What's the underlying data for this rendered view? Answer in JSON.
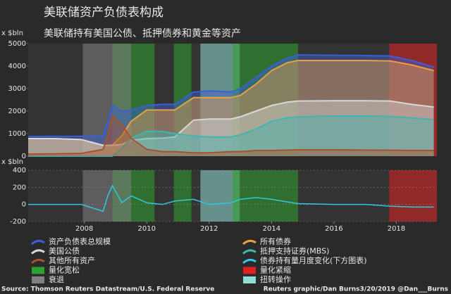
{
  "chart_data": [
    {
      "type": "area",
      "title": "美联储资产负债表构成",
      "subtitle": "美联储持有美国公债、抵押债券和黄金等资产",
      "ylabel": "x $bln",
      "xlim": [
        2006.2,
        2019.3
      ],
      "ylim": [
        0,
        5000
      ],
      "yticks": [
        0,
        1000,
        2000,
        3000,
        4000,
        5000
      ],
      "x": [
        2006.2,
        2007,
        2007.9,
        2008.6,
        2008.75,
        2008.9,
        2009.2,
        2009.5,
        2010,
        2010.5,
        2010.9,
        2011.5,
        2012,
        2012.7,
        2013,
        2013.5,
        2014,
        2014.5,
        2014.85,
        2016,
        2017,
        2017.8,
        2018.5,
        2019.2
      ],
      "series": [
        {
          "name": "资产负债表总规模",
          "color": "#3a5fd8",
          "values": [
            870,
            880,
            880,
            900,
            1500,
            2250,
            2000,
            2050,
            2250,
            2300,
            2300,
            2850,
            2900,
            2850,
            3000,
            3500,
            4000,
            4350,
            4500,
            4480,
            4470,
            4450,
            4250,
            3950
          ]
        },
        {
          "name": "所有债券",
          "color": "#e8a040",
          "values": [
            780,
            780,
            740,
            480,
            480,
            500,
            900,
            1550,
            2050,
            2050,
            2050,
            2600,
            2600,
            2600,
            2700,
            3200,
            3800,
            4150,
            4250,
            4250,
            4250,
            4230,
            4050,
            3800
          ]
        },
        {
          "name": "美国公债",
          "color": "#d8d8d8",
          "values": [
            780,
            780,
            740,
            480,
            480,
            480,
            520,
            700,
            780,
            800,
            850,
            1600,
            1650,
            1650,
            1750,
            2000,
            2250,
            2400,
            2450,
            2460,
            2460,
            2450,
            2300,
            2180
          ]
        },
        {
          "name": "抵押支持证券(MBS)",
          "color": "#40b4b0",
          "values": [
            0,
            0,
            0,
            0,
            0,
            0,
            350,
            800,
            1100,
            1100,
            1000,
            900,
            850,
            850,
            950,
            1200,
            1550,
            1700,
            1750,
            1780,
            1780,
            1760,
            1700,
            1620
          ]
        },
        {
          "name": "其他所有资产",
          "color": "#a8522a",
          "values": [
            90,
            100,
            120,
            300,
            900,
            1800,
            1400,
            800,
            300,
            200,
            200,
            150,
            150,
            200,
            200,
            250,
            250,
            270,
            280,
            280,
            270,
            260,
            250,
            250
          ]
        }
      ],
      "shaded_regions": [
        {
          "name": "量化宽松",
          "color": "#2ea02e",
          "range": [
            2008.9,
            2010.25
          ]
        },
        {
          "name": "量化紧缩",
          "color": "#e02020",
          "range": [
            2017.77,
            2019.3
          ]
        },
        {
          "name": "衰退",
          "color": "#808080",
          "range": [
            2007.95,
            2009.5
          ]
        },
        {
          "name": "扭转操作",
          "color": "#8fdcd4",
          "range": [
            2011.72,
            2012.98
          ]
        },
        {
          "name": "量化宽松",
          "color": "#2ea02e",
          "range": [
            2010.87,
            2011.43
          ]
        },
        {
          "name": "量化宽松",
          "color": "#2ea02e",
          "range": [
            2012.75,
            2014.85
          ]
        }
      ]
    },
    {
      "type": "line",
      "ylabel": "x $bln",
      "xlim": [
        2006.2,
        2019.3
      ],
      "ylim": [
        -200,
        400
      ],
      "yticks": [
        -200,
        0,
        200,
        400
      ],
      "xticks": [
        2008,
        2010,
        2012,
        2014,
        2016,
        2018
      ],
      "grid": true,
      "x": [
        2006.2,
        2007,
        2007.9,
        2008.6,
        2008.75,
        2008.9,
        2009.2,
        2009.5,
        2010,
        2010.5,
        2010.9,
        2011.5,
        2012,
        2012.7,
        2013,
        2013.5,
        2014,
        2014.5,
        2014.85,
        2016,
        2017,
        2017.8,
        2018.5,
        2019.2
      ],
      "series": [
        {
          "name": "债券持有量月度变化(下方图表)",
          "color": "#30c8e0",
          "values": [
            0,
            0,
            0,
            -80,
            100,
            220,
            20,
            100,
            20,
            0,
            40,
            60,
            0,
            20,
            60,
            80,
            60,
            30,
            10,
            0,
            0,
            -20,
            -30,
            -30
          ]
        }
      ]
    }
  ],
  "source": "Source: Thomson Reuters Datastream/U.S. Federal Reserve",
  "credit": "Reuters graphic/Dan Burns3/20/2019 @Dan___Burns"
}
